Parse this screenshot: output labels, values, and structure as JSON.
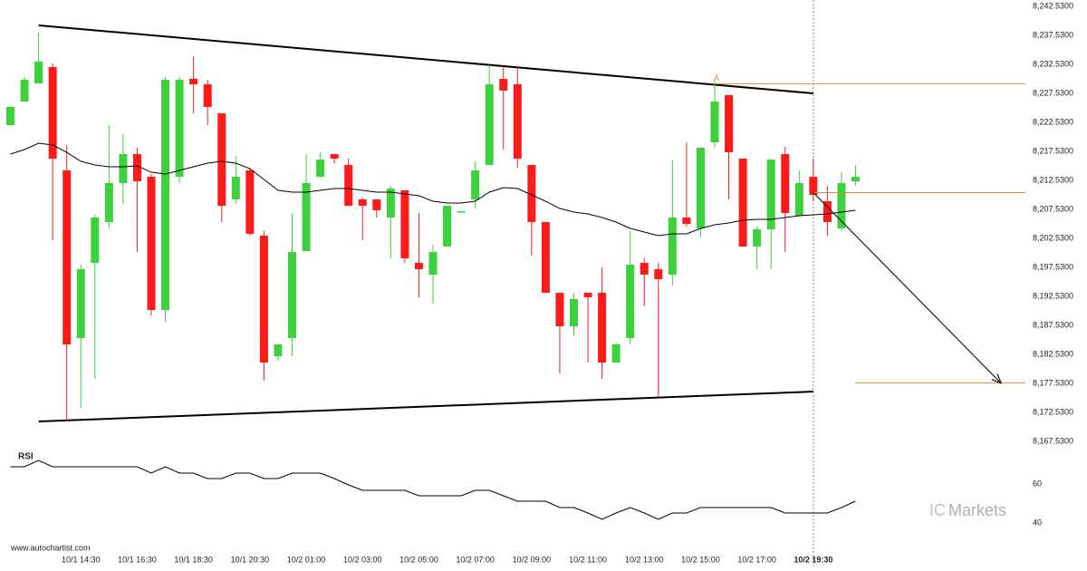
{
  "chart_data": [
    {
      "type": "candlestick",
      "categories": [
        null,
        null,
        null,
        null,
        null,
        "10/1 14:30",
        null,
        null,
        null,
        "10/1 16:30",
        null,
        null,
        null,
        "10/1 18:30",
        null,
        null,
        null,
        "10/1 20:30",
        null,
        null,
        null,
        "10/2 01:00",
        null,
        null,
        null,
        "10/2 03:00",
        null,
        null,
        null,
        "10/2 05:00",
        null,
        null,
        null,
        "10/2 07:00",
        null,
        null,
        null,
        "10/2 09:00",
        null,
        null,
        null,
        "10/2 11:00",
        null,
        null,
        null,
        "10/2 13:00",
        null,
        null,
        null,
        "10/2 15:00",
        null,
        null,
        null,
        "10/2 17:00",
        null,
        null,
        null,
        "10/2 19:30",
        null,
        null,
        null
      ],
      "open": [
        8222.06,
        8226.12,
        8229.25,
        8232.06,
        8214.25,
        8185.34,
        8198.31,
        8205.34,
        8212.06,
        8217.06,
        8213.15,
        8190.18,
        8213.15,
        8230.03,
        8229.09,
        8224.09,
        8209.25,
        8214.25,
        8203.0,
        8182.21,
        8185.34,
        8200.34,
        8213.15,
        8217.06,
        8215.18,
        8209.25,
        8209.25,
        8206.12,
        8210.81,
        8198.31,
        8196.28,
        8201.12,
        8207.21,
        8209.25,
        8215.18,
        8230.03,
        8229.09,
        8215.18,
        8205.34,
        8193.15,
        8187.37,
        8193.15,
        8193.15,
        8181.12,
        8185.34,
        8198.31,
        8197.21,
        8196.28,
        8206.12,
        8204.25,
        8219.09,
        8227.21,
        8216.28,
        8201.12,
        8204.09,
        8217.06,
        8206.43,
        8213.15,
        8208.93,
        8204.25,
        8212.37
      ],
      "high": [
        8225.19,
        8230.34,
        8238.0,
        8232.68,
        8218.62,
        8198.0,
        8206.59,
        8222.06,
        8220.5,
        8218.15,
        8213.62,
        8230.34,
        8230.34,
        8233.93,
        8229.87,
        8224.09,
        8216.75,
        8214.71,
        8203.78,
        8184.25,
        8206.9,
        8217.06,
        8217.37,
        8217.06,
        8216.28,
        8209.56,
        8209.25,
        8211.59,
        8210.81,
        8206.9,
        8201.43,
        8208.15,
        8207.21,
        8215.81,
        8232.37,
        8232.21,
        8232.21,
        8215.18,
        8205.34,
        8193.15,
        8193.15,
        8193.15,
        8197.53,
        8184.56,
        8203.78,
        8199.09,
        8198.31,
        8215.96,
        8219.09,
        8218.15,
        8230.03,
        8227.21,
        8216.28,
        8204.56,
        8216.12,
        8218.31,
        8214.25,
        8216.28,
        8211.59,
        8213.93,
        8215.18
      ],
      "low": [
        8222.06,
        8226.12,
        8229.25,
        8202.21,
        8170.96,
        8173.31,
        8178.31,
        8204.25,
        8208.46,
        8200.18,
        8189.25,
        8188.15,
        8212.06,
        8224.09,
        8222.06,
        8205.34,
        8208.46,
        8203.0,
        8178.0,
        8181.43,
        8182.21,
        8200.34,
        8213.15,
        8215.5,
        8208.15,
        8202.21,
        8206.12,
        8199.09,
        8198.31,
        8192.37,
        8191.28,
        8201.12,
        8207.21,
        8207.68,
        8215.18,
        8217.84,
        8214.71,
        8199.56,
        8193.15,
        8179.25,
        8185.81,
        8181.12,
        8178.31,
        8181.12,
        8184.25,
        8190.81,
        8175.18,
        8194.4,
        8204.56,
        8202.68,
        8218.15,
        8209.25,
        8201.12,
        8197.21,
        8197.21,
        8200.18,
        8206.43,
        8208.93,
        8203.0,
        8203.78,
        8211.59
      ],
      "close": [
        8225.19,
        8229.87,
        8233.0,
        8216.28,
        8184.25,
        8197.21,
        8206.12,
        8212.06,
        8217.06,
        8212.37,
        8190.18,
        8229.87,
        8229.87,
        8229.09,
        8225.19,
        8208.15,
        8213.15,
        8203.31,
        8181.12,
        8184.25,
        8200.18,
        8212.06,
        8216.12,
        8216.28,
        8208.15,
        8208.15,
        8207.37,
        8211.12,
        8199.09,
        8197.21,
        8200.18,
        8208.15,
        8207.21,
        8214.25,
        8229.09,
        8228.0,
        8216.28,
        8205.34,
        8193.15,
        8187.37,
        8192.06,
        8192.37,
        8181.12,
        8184.25,
        8198.0,
        8196.28,
        8195.5,
        8206.12,
        8205.03,
        8218.15,
        8226.12,
        8217.37,
        8201.12,
        8204.09,
        8216.12,
        8206.9,
        8212.06,
        8210.03,
        8205.34,
        8212.06,
        8213.15
      ],
      "up_color": "#3dd13d",
      "down_color": "#ff1a1a",
      "overlay": {
        "color": "#000000",
        "values": [
          8217.06,
          8217.84,
          8218.93,
          8218.62,
          8217.37,
          8215.81,
          8215.18,
          8214.87,
          8214.87,
          8215.03,
          8213.93,
          8213.62,
          8214.25,
          8214.87,
          8215.5,
          8215.81,
          8215.5,
          8214.56,
          8212.68,
          8210.81,
          8210.5,
          8210.5,
          8210.81,
          8211.12,
          8211.12,
          8210.81,
          8210.5,
          8210.5,
          8210.18,
          8209.87,
          8208.93,
          8208.62,
          8208.62,
          8208.93,
          8210.5,
          8211.28,
          8211.12,
          8210.03,
          8208.93,
          8207.68,
          8207.06,
          8206.75,
          8206.12,
          8205.34,
          8204.25,
          8203.62,
          8203.0,
          8203.31,
          8203.31,
          8204.25,
          8204.87,
          8205.18,
          8205.65,
          8205.81,
          8205.81,
          8206.12,
          8206.43,
          8206.59,
          8206.75,
          8207.06,
          8207.37
        ]
      },
      "ylim": [
        8165.53,
        8242.53
      ],
      "yticks": [
        {
          "value": 8242.53,
          "label": "8,242.5300"
        },
        {
          "value": 8237.53,
          "label": "8,237.5300"
        },
        {
          "value": 8232.53,
          "label": "8,232.5300"
        },
        {
          "value": 8227.53,
          "label": "8,227.5300"
        },
        {
          "value": 8222.53,
          "label": "8,222.5300"
        },
        {
          "value": 8217.53,
          "label": "8,217.5300"
        },
        {
          "value": 8212.53,
          "label": "8,212.5300"
        },
        {
          "value": 8207.53,
          "label": "8,207.5300"
        },
        {
          "value": 8202.53,
          "label": "8,202.5300"
        },
        {
          "value": 8197.53,
          "label": "8,197.5300"
        },
        {
          "value": 8192.53,
          "label": "8,192.5300"
        },
        {
          "value": 8187.53,
          "label": "8,187.5300"
        },
        {
          "value": 8182.53,
          "label": "8,182.5300"
        },
        {
          "value": 8177.53,
          "label": "8,177.5300"
        },
        {
          "value": 8172.53,
          "label": "8,172.5300"
        },
        {
          "value": 8167.53,
          "label": "8,167.5300"
        }
      ],
      "trendlines": [
        {
          "from": [
            2,
            8239.25
          ],
          "to": [
            57,
            8227.53
          ]
        },
        {
          "from": [
            2,
            8170.96
          ],
          "to": [
            57,
            8176.12
          ]
        }
      ],
      "levels": [
        {
          "value": 8229.19,
          "from": 50
        },
        {
          "value": 8210.43,
          "from": 57
        },
        {
          "value": 8177.62,
          "from": 60
        }
      ],
      "level_color": "#e0873c",
      "annotation": {
        "text": "A",
        "at": [
          50,
          8229.19
        ]
      },
      "arrow": {
        "from": [
          57,
          8210.43
        ],
        "to": [
          70.3,
          8177.62
        ]
      },
      "vline": 57
    },
    {
      "type": "line",
      "title": "RSI",
      "color": "#000000",
      "values": [
        68.84,
        68.84,
        72.09,
        68.84,
        68.84,
        68.84,
        68.84,
        68.84,
        68.84,
        68.84,
        65.58,
        68.84,
        65.58,
        65.58,
        62.79,
        62.79,
        65.58,
        65.58,
        62.79,
        62.79,
        65.58,
        65.58,
        65.58,
        62.79,
        59.53,
        56.74,
        56.74,
        56.74,
        56.74,
        53.95,
        53.95,
        53.95,
        53.95,
        56.74,
        56.74,
        53.95,
        51.16,
        51.16,
        51.16,
        47.91,
        47.91,
        45.12,
        41.86,
        45.12,
        47.91,
        45.12,
        41.86,
        45.12,
        45.12,
        47.91,
        47.91,
        47.91,
        47.91,
        47.91,
        47.91,
        45.12,
        45.12,
        45.12,
        45.12,
        47.91,
        51.16
      ],
      "ylim": [
        35,
        80
      ],
      "yticks": [
        60,
        40
      ]
    }
  ],
  "source": "www.autochartist.com",
  "logo": {
    "prefix": "IC",
    "name": "Markets"
  }
}
